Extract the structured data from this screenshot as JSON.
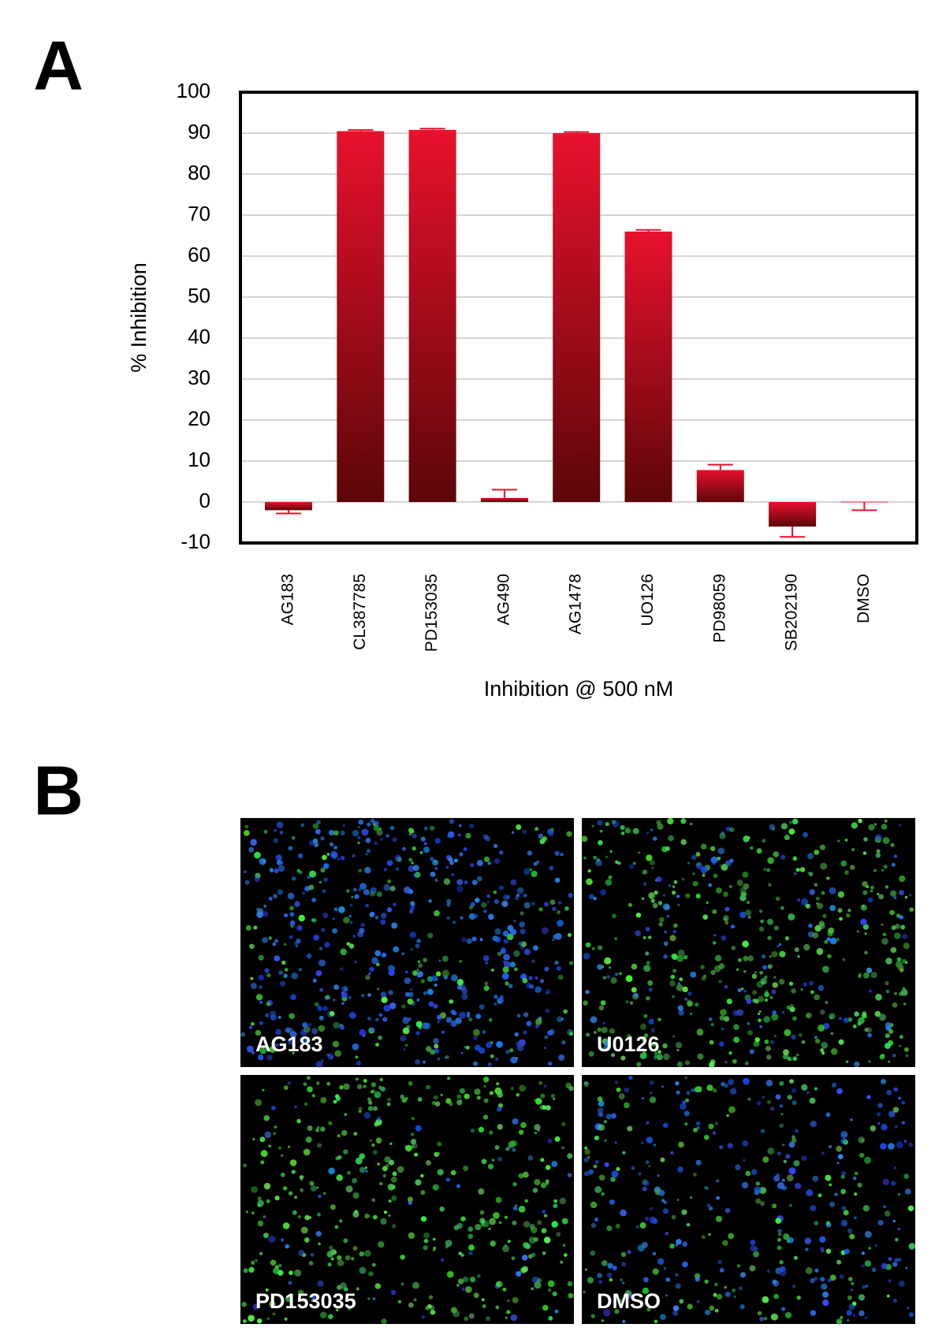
{
  "panel_a": {
    "label": "A"
  },
  "chart_data": {
    "type": "bar",
    "ylabel": "% Inhibition",
    "xlabel": "Inhibition @ 500 nM",
    "categories": [
      "AG183",
      "CL387785",
      "PD153035",
      "AG490",
      "AG1478",
      "UO126",
      "PD98059",
      "SB202190",
      "DMSO"
    ],
    "values": [
      -2,
      90.5,
      90.8,
      1,
      90,
      66,
      7.8,
      -6,
      0
    ],
    "errors": [
      0.8,
      0.3,
      0.3,
      2,
      0.3,
      0.4,
      1.3,
      2.5,
      2
    ],
    "color": "#e8112d",
    "ylim": [
      -10,
      100
    ],
    "yticks": [
      -10,
      0,
      10,
      20,
      30,
      40,
      50,
      60,
      70,
      80,
      90,
      100
    ],
    "grid": true
  },
  "panel_b": {
    "label": "B",
    "images": [
      {
        "label": "AG183"
      },
      {
        "label": "U0126"
      },
      {
        "label": "PD153035"
      },
      {
        "label": "DMSO"
      }
    ]
  }
}
